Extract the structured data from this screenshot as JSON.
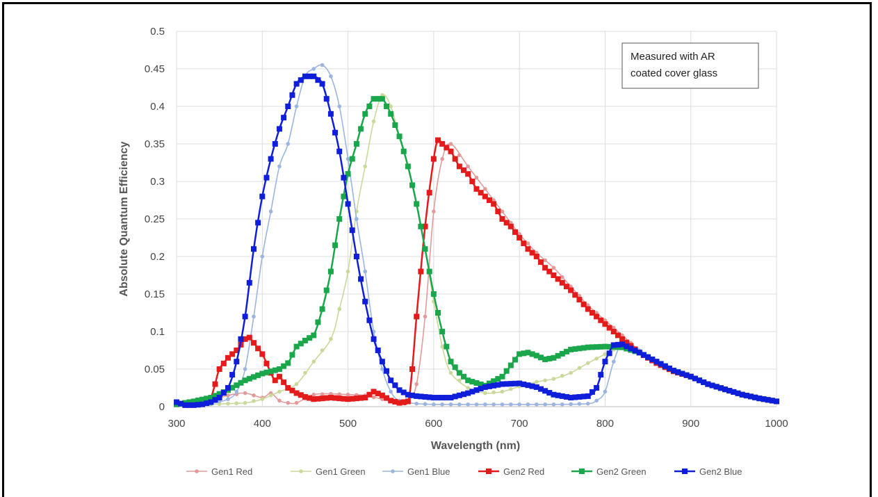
{
  "chart_data": {
    "type": "line",
    "title": "",
    "xlabel": "Wavelength (nm)",
    "ylabel": "Absolute Quantum Efficiency",
    "xlim": [
      300,
      1000
    ],
    "ylim": [
      0,
      0.5
    ],
    "x_ticks": [
      "300",
      "400",
      "500",
      "600",
      "700",
      "800",
      "900",
      "1000"
    ],
    "y_ticks": [
      "0",
      "0.05",
      "0.1",
      "0.15",
      "0.2",
      "0.25",
      "0.3",
      "0.35",
      "0.4",
      "0.45",
      "0.5"
    ],
    "grid": true,
    "legend_position": "bottom",
    "annotation": [
      "Measured with AR",
      "coated cover glass"
    ],
    "series": [
      {
        "name": "Gen1 Red",
        "color": "#e39a9a",
        "marker": "circle",
        "points": [
          [
            300,
            0.002
          ],
          [
            320,
            0.003
          ],
          [
            340,
            0.008
          ],
          [
            360,
            0.015
          ],
          [
            380,
            0.018
          ],
          [
            400,
            0.012
          ],
          [
            410,
            0.018
          ],
          [
            420,
            0.008
          ],
          [
            430,
            0.005
          ],
          [
            440,
            0.005
          ],
          [
            460,
            0.016
          ],
          [
            480,
            0.017
          ],
          [
            500,
            0.016
          ],
          [
            520,
            0.015
          ],
          [
            540,
            0.01
          ],
          [
            560,
            0.005
          ],
          [
            570,
            0.008
          ],
          [
            580,
            0.03
          ],
          [
            590,
            0.12
          ],
          [
            600,
            0.26
          ],
          [
            610,
            0.33
          ],
          [
            620,
            0.35
          ],
          [
            640,
            0.32
          ],
          [
            660,
            0.29
          ],
          [
            680,
            0.26
          ],
          [
            700,
            0.23
          ],
          [
            720,
            0.205
          ],
          [
            740,
            0.185
          ],
          [
            760,
            0.16
          ],
          [
            780,
            0.135
          ],
          [
            800,
            0.115
          ],
          [
            820,
            0.095
          ],
          [
            840,
            0.075
          ],
          [
            860,
            0.06
          ],
          [
            880,
            0.048
          ],
          [
            900,
            0.04
          ],
          [
            920,
            0.03
          ],
          [
            940,
            0.023
          ],
          [
            960,
            0.016
          ],
          [
            980,
            0.011
          ],
          [
            1000,
            0.007
          ]
        ]
      },
      {
        "name": "Gen1 Green",
        "color": "#c9d99a",
        "marker": "circle",
        "points": [
          [
            300,
            0.002
          ],
          [
            340,
            0.003
          ],
          [
            360,
            0.004
          ],
          [
            380,
            0.005
          ],
          [
            400,
            0.01
          ],
          [
            420,
            0.02
          ],
          [
            440,
            0.03
          ],
          [
            460,
            0.06
          ],
          [
            480,
            0.09
          ],
          [
            490,
            0.13
          ],
          [
            500,
            0.18
          ],
          [
            510,
            0.26
          ],
          [
            520,
            0.32
          ],
          [
            530,
            0.38
          ],
          [
            540,
            0.415
          ],
          [
            550,
            0.4
          ],
          [
            560,
            0.36
          ],
          [
            570,
            0.32
          ],
          [
            580,
            0.27
          ],
          [
            590,
            0.21
          ],
          [
            600,
            0.14
          ],
          [
            610,
            0.08
          ],
          [
            620,
            0.045
          ],
          [
            640,
            0.025
          ],
          [
            660,
            0.018
          ],
          [
            680,
            0.02
          ],
          [
            700,
            0.027
          ],
          [
            720,
            0.033
          ],
          [
            740,
            0.037
          ],
          [
            760,
            0.045
          ],
          [
            780,
            0.058
          ],
          [
            800,
            0.07
          ],
          [
            820,
            0.082
          ],
          [
            840,
            0.075
          ],
          [
            860,
            0.06
          ],
          [
            880,
            0.048
          ],
          [
            900,
            0.04
          ],
          [
            920,
            0.03
          ],
          [
            940,
            0.023
          ],
          [
            960,
            0.016
          ],
          [
            980,
            0.011
          ],
          [
            1000,
            0.007
          ]
        ]
      },
      {
        "name": "Gen1 Blue",
        "color": "#9bb5e0",
        "marker": "circle",
        "points": [
          [
            300,
            0.004
          ],
          [
            320,
            0.003
          ],
          [
            340,
            0.004
          ],
          [
            360,
            0.01
          ],
          [
            370,
            0.02
          ],
          [
            380,
            0.05
          ],
          [
            390,
            0.12
          ],
          [
            400,
            0.2
          ],
          [
            410,
            0.26
          ],
          [
            420,
            0.32
          ],
          [
            430,
            0.35
          ],
          [
            440,
            0.4
          ],
          [
            450,
            0.44
          ],
          [
            460,
            0.45
          ],
          [
            470,
            0.455
          ],
          [
            480,
            0.44
          ],
          [
            490,
            0.4
          ],
          [
            500,
            0.33
          ],
          [
            510,
            0.25
          ],
          [
            520,
            0.18
          ],
          [
            530,
            0.1
          ],
          [
            540,
            0.05
          ],
          [
            550,
            0.02
          ],
          [
            560,
            0.008
          ],
          [
            580,
            0.004
          ],
          [
            600,
            0.003
          ],
          [
            650,
            0.003
          ],
          [
            700,
            0.003
          ],
          [
            750,
            0.003
          ],
          [
            780,
            0.004
          ],
          [
            790,
            0.008
          ],
          [
            800,
            0.02
          ],
          [
            810,
            0.06
          ],
          [
            820,
            0.082
          ],
          [
            840,
            0.075
          ],
          [
            860,
            0.06
          ],
          [
            880,
            0.048
          ],
          [
            900,
            0.04
          ],
          [
            920,
            0.03
          ],
          [
            940,
            0.023
          ],
          [
            960,
            0.016
          ],
          [
            980,
            0.011
          ],
          [
            1000,
            0.007
          ]
        ]
      },
      {
        "name": "Gen2 Red",
        "color": "#e31b1b",
        "marker": "square",
        "points": [
          [
            340,
            0.01
          ],
          [
            345,
            0.03
          ],
          [
            350,
            0.05
          ],
          [
            360,
            0.065
          ],
          [
            370,
            0.075
          ],
          [
            380,
            0.09
          ],
          [
            385,
            0.092
          ],
          [
            390,
            0.085
          ],
          [
            400,
            0.07
          ],
          [
            410,
            0.045
          ],
          [
            415,
            0.035
          ],
          [
            420,
            0.04
          ],
          [
            430,
            0.025
          ],
          [
            440,
            0.018
          ],
          [
            450,
            0.013
          ],
          [
            460,
            0.01
          ],
          [
            480,
            0.012
          ],
          [
            500,
            0.01
          ],
          [
            520,
            0.012
          ],
          [
            530,
            0.02
          ],
          [
            540,
            0.015
          ],
          [
            550,
            0.008
          ],
          [
            560,
            0.005
          ],
          [
            570,
            0.007
          ],
          [
            575,
            0.05
          ],
          [
            580,
            0.12
          ],
          [
            590,
            0.24
          ],
          [
            600,
            0.33
          ],
          [
            605,
            0.355
          ],
          [
            610,
            0.35
          ],
          [
            620,
            0.34
          ],
          [
            630,
            0.32
          ],
          [
            640,
            0.31
          ],
          [
            650,
            0.29
          ],
          [
            660,
            0.28
          ],
          [
            670,
            0.27
          ],
          [
            680,
            0.25
          ],
          [
            690,
            0.24
          ],
          [
            700,
            0.225
          ],
          [
            710,
            0.21
          ],
          [
            720,
            0.2
          ],
          [
            730,
            0.185
          ],
          [
            740,
            0.175
          ],
          [
            760,
            0.155
          ],
          [
            780,
            0.13
          ],
          [
            800,
            0.11
          ],
          [
            820,
            0.09
          ],
          [
            840,
            0.072
          ],
          [
            860,
            0.058
          ],
          [
            880,
            0.047
          ],
          [
            900,
            0.04
          ],
          [
            920,
            0.03
          ],
          [
            940,
            0.023
          ],
          [
            960,
            0.016
          ],
          [
            980,
            0.011
          ],
          [
            1000,
            0.007
          ]
        ]
      },
      {
        "name": "Gen2 Green",
        "color": "#1aa64a",
        "marker": "square",
        "points": [
          [
            300,
            0.003
          ],
          [
            320,
            0.007
          ],
          [
            340,
            0.012
          ],
          [
            360,
            0.022
          ],
          [
            380,
            0.035
          ],
          [
            400,
            0.044
          ],
          [
            420,
            0.05
          ],
          [
            430,
            0.058
          ],
          [
            440,
            0.08
          ],
          [
            450,
            0.088
          ],
          [
            460,
            0.095
          ],
          [
            470,
            0.13
          ],
          [
            480,
            0.18
          ],
          [
            490,
            0.25
          ],
          [
            500,
            0.31
          ],
          [
            510,
            0.35
          ],
          [
            520,
            0.39
          ],
          [
            530,
            0.41
          ],
          [
            540,
            0.41
          ],
          [
            550,
            0.39
          ],
          [
            560,
            0.36
          ],
          [
            570,
            0.32
          ],
          [
            580,
            0.27
          ],
          [
            590,
            0.21
          ],
          [
            600,
            0.15
          ],
          [
            610,
            0.1
          ],
          [
            620,
            0.06
          ],
          [
            630,
            0.045
          ],
          [
            640,
            0.035
          ],
          [
            660,
            0.028
          ],
          [
            680,
            0.04
          ],
          [
            690,
            0.055
          ],
          [
            700,
            0.07
          ],
          [
            710,
            0.072
          ],
          [
            720,
            0.068
          ],
          [
            730,
            0.063
          ],
          [
            740,
            0.065
          ],
          [
            760,
            0.076
          ],
          [
            780,
            0.079
          ],
          [
            800,
            0.08
          ],
          [
            820,
            0.079
          ],
          [
            840,
            0.072
          ],
          [
            860,
            0.06
          ],
          [
            880,
            0.048
          ],
          [
            900,
            0.04
          ],
          [
            920,
            0.03
          ],
          [
            940,
            0.023
          ],
          [
            960,
            0.016
          ],
          [
            980,
            0.011
          ],
          [
            1000,
            0.007
          ]
        ]
      },
      {
        "name": "Gen2 Blue",
        "color": "#0f1ed9",
        "marker": "square",
        "points": [
          [
            300,
            0.006
          ],
          [
            310,
            0.002
          ],
          [
            320,
            0.002
          ],
          [
            330,
            0.003
          ],
          [
            340,
            0.006
          ],
          [
            350,
            0.012
          ],
          [
            360,
            0.025
          ],
          [
            370,
            0.06
          ],
          [
            380,
            0.12
          ],
          [
            390,
            0.21
          ],
          [
            400,
            0.28
          ],
          [
            410,
            0.33
          ],
          [
            420,
            0.37
          ],
          [
            430,
            0.4
          ],
          [
            440,
            0.43
          ],
          [
            450,
            0.44
          ],
          [
            460,
            0.44
          ],
          [
            470,
            0.43
          ],
          [
            480,
            0.39
          ],
          [
            490,
            0.34
          ],
          [
            500,
            0.27
          ],
          [
            510,
            0.2
          ],
          [
            520,
            0.14
          ],
          [
            530,
            0.09
          ],
          [
            540,
            0.06
          ],
          [
            550,
            0.035
          ],
          [
            560,
            0.022
          ],
          [
            570,
            0.016
          ],
          [
            580,
            0.014
          ],
          [
            600,
            0.012
          ],
          [
            620,
            0.012
          ],
          [
            640,
            0.018
          ],
          [
            660,
            0.026
          ],
          [
            680,
            0.03
          ],
          [
            700,
            0.031
          ],
          [
            720,
            0.026
          ],
          [
            740,
            0.016
          ],
          [
            760,
            0.012
          ],
          [
            780,
            0.014
          ],
          [
            790,
            0.025
          ],
          [
            800,
            0.06
          ],
          [
            810,
            0.082
          ],
          [
            820,
            0.083
          ],
          [
            840,
            0.072
          ],
          [
            860,
            0.06
          ],
          [
            880,
            0.048
          ],
          [
            900,
            0.04
          ],
          [
            920,
            0.03
          ],
          [
            940,
            0.023
          ],
          [
            960,
            0.016
          ],
          [
            980,
            0.011
          ],
          [
            1000,
            0.007
          ]
        ]
      }
    ]
  }
}
